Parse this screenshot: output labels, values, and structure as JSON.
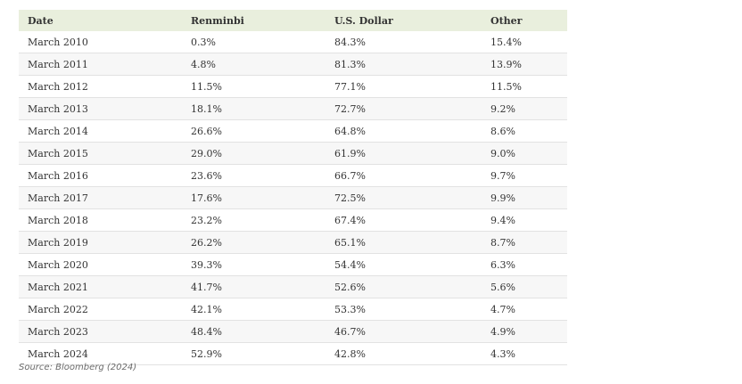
{
  "table": {
    "headers": [
      "Date",
      "Renminbi",
      "U.S. Dollar",
      "Other"
    ],
    "rows": [
      [
        "March 2010",
        "0.3%",
        "84.3%",
        "15.4%"
      ],
      [
        "March 2011",
        "4.8%",
        "81.3%",
        "13.9%"
      ],
      [
        "March 2012",
        "11.5%",
        "77.1%",
        "11.5%"
      ],
      [
        "March 2013",
        "18.1%",
        "72.7%",
        "9.2%"
      ],
      [
        "March 2014",
        "26.6%",
        "64.8%",
        "8.6%"
      ],
      [
        "March 2015",
        "29.0%",
        "61.9%",
        "9.0%"
      ],
      [
        "March 2016",
        "23.6%",
        "66.7%",
        "9.7%"
      ],
      [
        "March 2017",
        "17.6%",
        "72.5%",
        "9.9%"
      ],
      [
        "March 2018",
        "23.2%",
        "67.4%",
        "9.4%"
      ],
      [
        "March 2019",
        "26.2%",
        "65.1%",
        "8.7%"
      ],
      [
        "March 2020",
        "39.3%",
        "54.4%",
        "6.3%"
      ],
      [
        "March 2021",
        "41.7%",
        "52.6%",
        "5.6%"
      ],
      [
        "March 2022",
        "42.1%",
        "53.3%",
        "4.7%"
      ],
      [
        "March 2023",
        "48.4%",
        "46.7%",
        "4.9%"
      ],
      [
        "March 2024",
        "52.9%",
        "42.8%",
        "4.3%"
      ]
    ]
  },
  "source": "Source: Bloomberg (2024)",
  "colors": {
    "header_bg": "#e9efdd",
    "row_alt_bg": "#f7f7f7",
    "border": "#e2e2e2",
    "text": "#333333"
  }
}
